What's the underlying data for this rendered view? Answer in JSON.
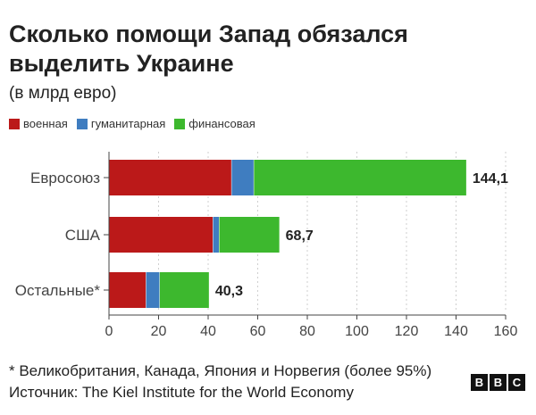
{
  "title": "Сколько помощи Запад обязался выделить Украине",
  "subtitle": "(в млрд евро)",
  "legend": [
    {
      "label": "военная",
      "color": "#bb1919"
    },
    {
      "label": "гуманитарная",
      "color": "#3f7dc0"
    },
    {
      "label": "финансовая",
      "color": "#3db82e"
    }
  ],
  "chart_data": {
    "type": "bar",
    "orientation": "horizontal",
    "stacked": true,
    "categories": [
      "Евросоюз",
      "США",
      "Остальные*"
    ],
    "series": [
      {
        "name": "военная",
        "values": [
          49.5,
          42.0,
          15.0
        ],
        "color": "#bb1919"
      },
      {
        "name": "гуманитарная",
        "values": [
          9.0,
          2.5,
          5.5
        ],
        "color": "#3f7dc0"
      },
      {
        "name": "финансовая",
        "values": [
          85.6,
          24.2,
          19.8
        ],
        "color": "#3db82e"
      }
    ],
    "totals": [
      "144,1",
      "68,7",
      "40,3"
    ],
    "xlim": [
      0,
      160
    ],
    "xticks": [
      0,
      20,
      40,
      60,
      80,
      100,
      120,
      140,
      160
    ],
    "grid": true
  },
  "footnote": "* Великобритания, Канада, Япония и Норвегия (более 95%)",
  "source": "Источник: The Kiel Institute for the World Economy",
  "logo": [
    "B",
    "B",
    "C"
  ]
}
